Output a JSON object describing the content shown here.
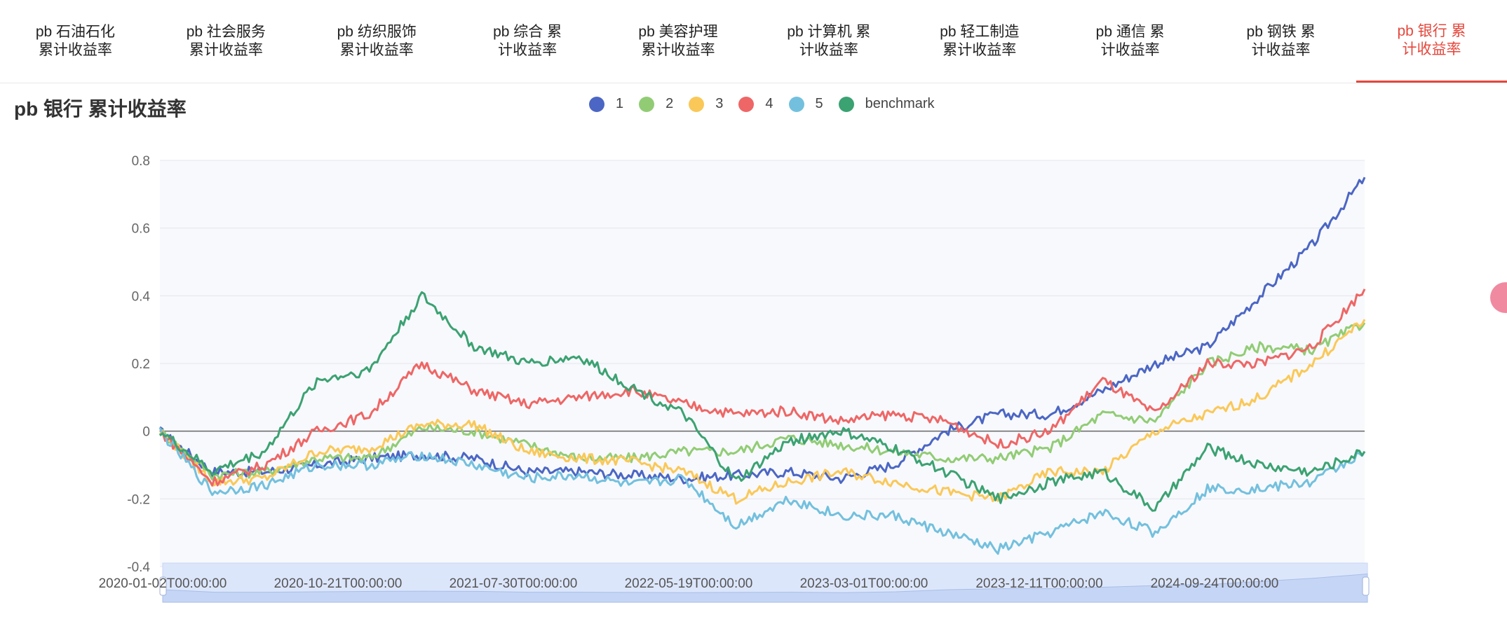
{
  "tabs": [
    {
      "line1": "pb 石油石化",
      "line2": "累计收益率",
      "active": false
    },
    {
      "line1": "pb 社会服务",
      "line2": "累计收益率",
      "active": false
    },
    {
      "line1": "pb 纺织服饰",
      "line2": "累计收益率",
      "active": false
    },
    {
      "line1": "pb 综合 累",
      "line2": "计收益率",
      "active": false
    },
    {
      "line1": "pb 美容护理",
      "line2": "累计收益率",
      "active": false
    },
    {
      "line1": "pb 计算机 累",
      "line2": "计收益率",
      "active": false
    },
    {
      "line1": "pb 轻工制造",
      "line2": "累计收益率",
      "active": false
    },
    {
      "line1": "pb 通信 累",
      "line2": "计收益率",
      "active": false
    },
    {
      "line1": "pb 钢铁 累",
      "line2": "计收益率",
      "active": false
    },
    {
      "line1": "pb 银行 累",
      "line2": "计收益率",
      "active": true
    }
  ],
  "chart_data": {
    "type": "line",
    "title": "pb 银行 累计收益率",
    "ylim": [
      -0.4,
      0.8
    ],
    "y_ticks": [
      "0.8",
      "0.6",
      "0.4",
      "0.2",
      "0",
      "-0.2",
      "-0.4"
    ],
    "x_ticks": [
      "2020-01-02T00:00:00",
      "2020-10-21T00:00:00",
      "2021-07-30T00:00:00",
      "2022-05-19T00:00:00",
      "2023-03-01T00:00:00",
      "2023-12-11T00:00:00",
      "2024-09-24T00:00:00"
    ],
    "x": [
      "2020-01",
      "2020-04",
      "2020-07",
      "2020-10",
      "2021-01",
      "2021-04",
      "2021-07",
      "2021-10",
      "2022-01",
      "2022-04",
      "2022-07",
      "2022-10",
      "2023-01",
      "2023-04",
      "2023-07",
      "2023-10",
      "2024-01",
      "2024-04",
      "2024-07",
      "2024-10",
      "2025-01",
      "2025-04",
      "2025-07",
      "2025-09"
    ],
    "legend_position": "top-center",
    "grid": true,
    "series": [
      {
        "name": "1",
        "color": "#4b66c4",
        "values": [
          0.0,
          -0.12,
          -0.12,
          -0.1,
          -0.08,
          -0.07,
          -0.08,
          -0.12,
          -0.12,
          -0.13,
          -0.14,
          -0.13,
          -0.12,
          -0.14,
          -0.1,
          0.0,
          0.05,
          0.05,
          0.12,
          0.2,
          0.25,
          0.4,
          0.55,
          0.75
        ]
      },
      {
        "name": "2",
        "color": "#91cc75",
        "values": [
          0.0,
          -0.13,
          -0.12,
          -0.08,
          -0.08,
          0.01,
          0.0,
          -0.04,
          -0.08,
          -0.08,
          -0.06,
          -0.06,
          -0.02,
          -0.04,
          -0.06,
          -0.08,
          -0.08,
          -0.05,
          0.05,
          0.03,
          0.2,
          0.25,
          0.24,
          0.32
        ]
      },
      {
        "name": "3",
        "color": "#fac858",
        "values": [
          0.0,
          -0.15,
          -0.14,
          -0.06,
          -0.05,
          0.02,
          0.02,
          -0.06,
          -0.08,
          -0.09,
          -0.12,
          -0.2,
          -0.15,
          -0.12,
          -0.15,
          -0.18,
          -0.2,
          -0.12,
          -0.12,
          0.0,
          0.05,
          0.1,
          0.2,
          0.33
        ]
      },
      {
        "name": "4",
        "color": "#ee6666",
        "values": [
          0.0,
          -0.15,
          -0.1,
          0.0,
          0.05,
          0.2,
          0.12,
          0.08,
          0.1,
          0.12,
          0.08,
          0.05,
          0.06,
          0.03,
          0.05,
          0.03,
          -0.04,
          0.0,
          0.15,
          0.05,
          0.2,
          0.2,
          0.25,
          0.42
        ]
      },
      {
        "name": "5",
        "color": "#73c0de",
        "values": [
          0.0,
          -0.18,
          -0.16,
          -0.1,
          -0.1,
          -0.07,
          -0.1,
          -0.14,
          -0.13,
          -0.16,
          -0.14,
          -0.28,
          -0.2,
          -0.25,
          -0.25,
          -0.3,
          -0.35,
          -0.3,
          -0.24,
          -0.3,
          -0.17,
          -0.17,
          -0.15,
          -0.06
        ]
      },
      {
        "name": "benchmark",
        "color": "#3ba272",
        "values": [
          0.0,
          -0.12,
          -0.06,
          0.15,
          0.18,
          0.4,
          0.25,
          0.2,
          0.22,
          0.13,
          0.05,
          -0.15,
          -0.03,
          0.0,
          -0.05,
          -0.12,
          -0.2,
          -0.15,
          -0.12,
          -0.23,
          -0.05,
          -0.1,
          -0.12,
          -0.06
        ]
      }
    ]
  }
}
